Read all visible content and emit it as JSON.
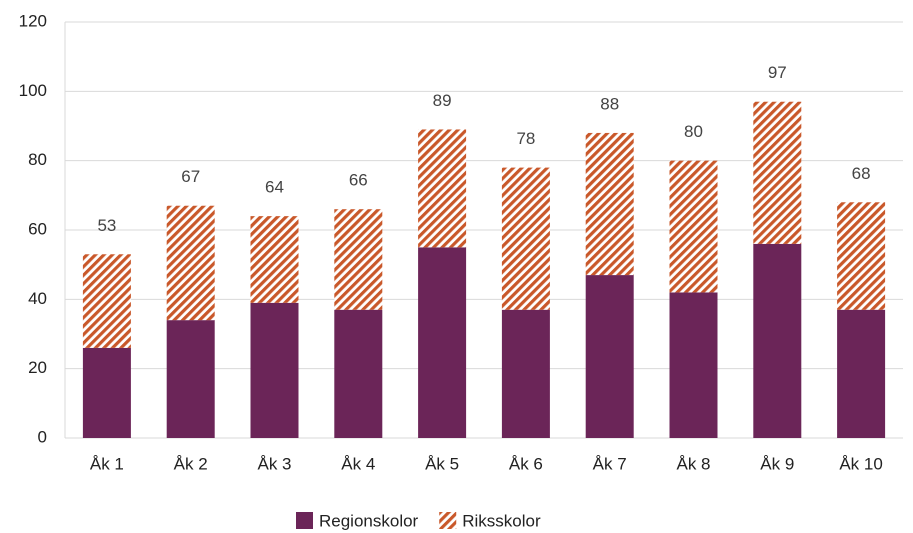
{
  "chart_data": {
    "type": "stacked_bar",
    "categories": [
      "Åk 1",
      "Åk 2",
      "Åk 3",
      "Åk 4",
      "Åk 5",
      "Åk 6",
      "Åk 7",
      "Åk 8",
      "Åk 9",
      "Åk 10"
    ],
    "series": [
      {
        "name": "Regionskolor",
        "color": "#6b2558",
        "values": [
          26,
          34,
          39,
          37,
          55,
          37,
          47,
          42,
          56,
          37
        ]
      },
      {
        "name": "Riksskolor",
        "color": "#c9582a",
        "pattern": "diagonal-stripes",
        "values": [
          27,
          33,
          25,
          29,
          34,
          41,
          41,
          38,
          41,
          31
        ]
      }
    ],
    "totals": [
      53,
      67,
      64,
      66,
      89,
      78,
      88,
      80,
      97,
      68
    ],
    "ylim": [
      0,
      120
    ],
    "yticks": [
      0,
      20,
      40,
      60,
      80,
      100,
      120
    ],
    "grid": true,
    "legend": "bottom"
  }
}
